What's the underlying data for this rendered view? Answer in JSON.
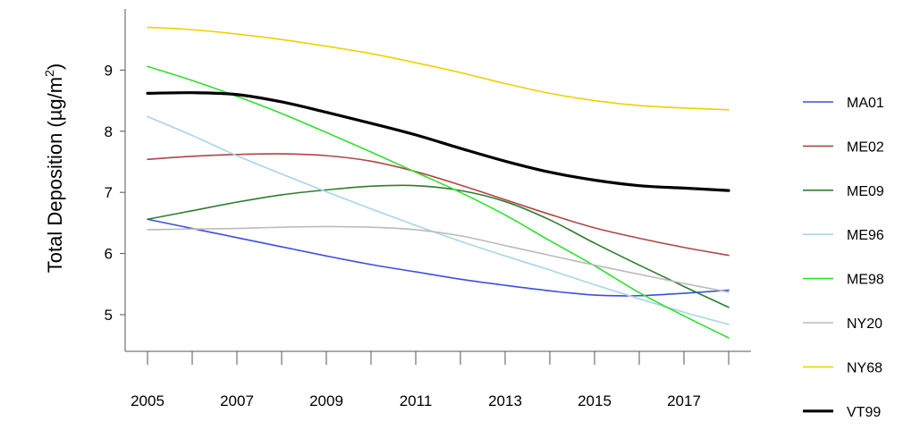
{
  "chart_data": {
    "type": "line",
    "ylabel_prefix": "Total Deposition (µg/m",
    "ylabel_sup": "2",
    "ylabel_suffix": ")",
    "xlim": [
      2005,
      2018
    ],
    "ylim": [
      4.4,
      10.0
    ],
    "x_ticks": [
      2005,
      2006,
      2007,
      2008,
      2009,
      2010,
      2011,
      2012,
      2013,
      2014,
      2015,
      2016,
      2017,
      2018
    ],
    "x_tick_labels": [
      "2005",
      "2007",
      "2009",
      "2011",
      "2013",
      "2015",
      "2017"
    ],
    "x_tick_label_values": [
      2005,
      2007,
      2009,
      2011,
      2013,
      2015,
      2017
    ],
    "y_ticks": [
      5,
      6,
      7,
      8,
      9
    ],
    "y_tick_labels": [
      "5",
      "6",
      "7",
      "8",
      "9"
    ],
    "legend_position": "right",
    "x": [
      2005,
      2006,
      2007,
      2008,
      2009,
      2010,
      2011,
      2012,
      2013,
      2014,
      2015,
      2016,
      2017,
      2018
    ],
    "series": [
      {
        "name": "MA01",
        "color": "#3b4fe0",
        "width": 1.6,
        "values": [
          6.56,
          6.41,
          6.26,
          6.11,
          5.96,
          5.82,
          5.7,
          5.58,
          5.48,
          5.39,
          5.32,
          5.31,
          5.35,
          5.4
        ]
      },
      {
        "name": "ME02",
        "color": "#b04545",
        "width": 1.6,
        "values": [
          7.54,
          7.59,
          7.62,
          7.63,
          7.6,
          7.51,
          7.34,
          7.12,
          6.88,
          6.64,
          6.42,
          6.25,
          6.1,
          5.97
        ]
      },
      {
        "name": "ME09",
        "color": "#2e7d2e",
        "width": 1.6,
        "values": [
          6.56,
          6.7,
          6.84,
          6.96,
          7.04,
          7.1,
          7.11,
          7.03,
          6.85,
          6.55,
          6.17,
          5.81,
          5.46,
          5.12
        ]
      },
      {
        "name": "ME96",
        "color": "#a9d5e6",
        "width": 1.6,
        "values": [
          8.24,
          7.93,
          7.6,
          7.3,
          7.01,
          6.73,
          6.46,
          6.2,
          5.96,
          5.73,
          5.49,
          5.26,
          5.04,
          4.84
        ]
      },
      {
        "name": "ME98",
        "color": "#2fe02f",
        "width": 1.6,
        "values": [
          9.06,
          8.83,
          8.57,
          8.29,
          7.98,
          7.66,
          7.33,
          7.0,
          6.63,
          6.21,
          5.8,
          5.36,
          4.98,
          4.62
        ]
      },
      {
        "name": "NY20",
        "color": "#bbbbbb",
        "width": 1.6,
        "values": [
          6.39,
          6.4,
          6.41,
          6.43,
          6.44,
          6.43,
          6.39,
          6.29,
          6.13,
          5.97,
          5.81,
          5.66,
          5.51,
          5.37
        ]
      },
      {
        "name": "NY68",
        "color": "#f0d000",
        "width": 1.6,
        "values": [
          9.7,
          9.66,
          9.59,
          9.5,
          9.39,
          9.27,
          9.12,
          8.96,
          8.78,
          8.62,
          8.5,
          8.42,
          8.38,
          8.35
        ]
      },
      {
        "name": "VT99",
        "color": "#000000",
        "width": 3.2,
        "values": [
          8.62,
          8.63,
          8.6,
          8.48,
          8.31,
          8.13,
          7.94,
          7.72,
          7.51,
          7.33,
          7.2,
          7.11,
          7.07,
          7.03
        ]
      }
    ]
  }
}
